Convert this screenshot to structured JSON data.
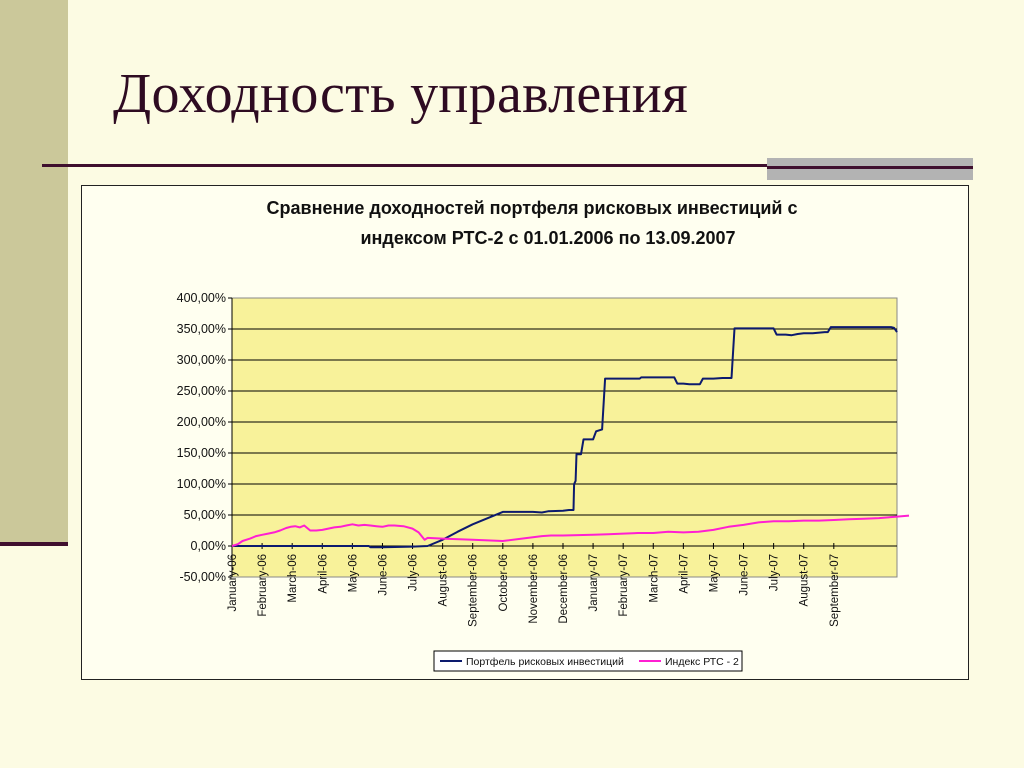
{
  "slide": {
    "title": "Доходность управления",
    "colors": {
      "band": "#cbc89a",
      "rule": "#3f0f2e",
      "accent": "#b3b3b3",
      "background": "#fcfbe3"
    }
  },
  "chart_data": {
    "type": "line",
    "title_lines": [
      "Сравнение доходностей портфеля рисковых инвестиций с",
      "индексом РТС-2 с 01.01.2006 по 13.09.2007"
    ],
    "xlabel": "",
    "ylabel": "",
    "ylim": [
      -50,
      400
    ],
    "y_ticks": [
      400,
      350,
      300,
      250,
      200,
      150,
      100,
      50,
      0,
      -50
    ],
    "y_tick_labels": [
      "400,00%",
      "350,00%",
      "300,00%",
      "250,00%",
      "200,00%",
      "150,00%",
      "100,00%",
      "50,00%",
      "0,00%",
      "-50,00%"
    ],
    "x_tick_labels": [
      "January-06",
      "February-06",
      "March-06",
      "April-06",
      "May-06",
      "June-06",
      "July-06",
      "August-06",
      "September-06",
      "October-06",
      "November-06",
      "December-06",
      "January-07",
      "February-07",
      "March-07",
      "April-07",
      "May-07",
      "June-07",
      "July-07",
      "August-07",
      "September-07"
    ],
    "x_unit": "months from January-06",
    "plot_background": "#f8f29a",
    "grid": "horizontal",
    "legend_position": "bottom",
    "series": [
      {
        "name": "Портфель рисковых инвестиций",
        "color": "#0c1a6e",
        "points": [
          [
            0,
            0
          ],
          [
            1,
            0
          ],
          [
            2,
            0
          ],
          [
            3,
            0
          ],
          [
            4,
            0
          ],
          [
            4.55,
            0
          ],
          [
            4.6,
            -2
          ],
          [
            5,
            -2
          ],
          [
            6,
            -1
          ],
          [
            6.5,
            0
          ],
          [
            7,
            10
          ],
          [
            7.5,
            23
          ],
          [
            8,
            35
          ],
          [
            9,
            55
          ],
          [
            10,
            55
          ],
          [
            10.3,
            54
          ],
          [
            10.5,
            56
          ],
          [
            11,
            57
          ],
          [
            11.2,
            58
          ],
          [
            11.35,
            58
          ],
          [
            11.37,
            100
          ],
          [
            11.42,
            105
          ],
          [
            11.45,
            148
          ],
          [
            11.6,
            148
          ],
          [
            11.68,
            172
          ],
          [
            12,
            172
          ],
          [
            12.1,
            185
          ],
          [
            12.3,
            188
          ],
          [
            12.4,
            270
          ],
          [
            13,
            270
          ],
          [
            13.55,
            270
          ],
          [
            13.6,
            272
          ],
          [
            14,
            272
          ],
          [
            14.7,
            272
          ],
          [
            14.8,
            262
          ],
          [
            15,
            262
          ],
          [
            15.2,
            261
          ],
          [
            15.55,
            261
          ],
          [
            15.65,
            270
          ],
          [
            16,
            270
          ],
          [
            16.3,
            271
          ],
          [
            16.6,
            271
          ],
          [
            16.7,
            351
          ],
          [
            17,
            351
          ],
          [
            18,
            351
          ],
          [
            18.1,
            341
          ],
          [
            18.4,
            341
          ],
          [
            18.6,
            340
          ],
          [
            18.8,
            342
          ],
          [
            19,
            343
          ],
          [
            19.3,
            343
          ],
          [
            19.7,
            345
          ],
          [
            19.8,
            345
          ],
          [
            19.9,
            353
          ],
          [
            20,
            353
          ],
          [
            21,
            353
          ],
          [
            21.5,
            353
          ],
          [
            21.9,
            353
          ],
          [
            22,
            352
          ],
          [
            22.1,
            345
          ]
        ]
      },
      {
        "name": "Индекс РТС - 2",
        "color": "#ff1fd2",
        "points": [
          [
            0,
            0
          ],
          [
            0.2,
            3
          ],
          [
            0.35,
            8
          ],
          [
            0.6,
            12
          ],
          [
            0.8,
            16
          ],
          [
            1,
            18
          ],
          [
            1.2,
            20
          ],
          [
            1.4,
            22
          ],
          [
            1.6,
            25
          ],
          [
            1.8,
            29
          ],
          [
            1.95,
            31
          ],
          [
            2.1,
            32
          ],
          [
            2.25,
            30
          ],
          [
            2.4,
            33
          ],
          [
            2.6,
            25
          ],
          [
            2.8,
            25
          ],
          [
            3,
            26
          ],
          [
            3.2,
            28
          ],
          [
            3.4,
            30
          ],
          [
            3.6,
            31
          ],
          [
            3.8,
            33
          ],
          [
            4,
            35
          ],
          [
            4.2,
            33
          ],
          [
            4.4,
            34
          ],
          [
            4.6,
            33
          ],
          [
            4.8,
            32
          ],
          [
            5,
            31
          ],
          [
            5.2,
            33
          ],
          [
            5.4,
            33
          ],
          [
            5.7,
            32
          ],
          [
            6,
            28
          ],
          [
            6.2,
            22
          ],
          [
            6.4,
            10
          ],
          [
            6.5,
            13
          ],
          [
            7,
            12
          ],
          [
            8,
            10
          ],
          [
            9,
            8
          ],
          [
            10,
            14
          ],
          [
            10.3,
            16
          ],
          [
            10.6,
            17
          ],
          [
            11,
            17
          ],
          [
            12,
            18
          ],
          [
            12.5,
            19
          ],
          [
            13,
            20
          ],
          [
            13.5,
            21
          ],
          [
            14,
            21
          ],
          [
            14.5,
            23
          ],
          [
            15,
            22
          ],
          [
            15.5,
            23
          ],
          [
            16,
            26
          ],
          [
            16.5,
            31
          ],
          [
            17,
            34
          ],
          [
            17.5,
            38
          ],
          [
            18,
            40
          ],
          [
            18.5,
            40
          ],
          [
            19,
            41
          ],
          [
            19.5,
            41
          ],
          [
            20,
            42
          ],
          [
            20.5,
            43
          ],
          [
            21,
            44
          ],
          [
            21.5,
            45
          ],
          [
            22,
            47
          ],
          [
            22.5,
            49
          ]
        ]
      }
    ],
    "x_domain_note": "Последняя точка соответствует 13.09.2007"
  }
}
